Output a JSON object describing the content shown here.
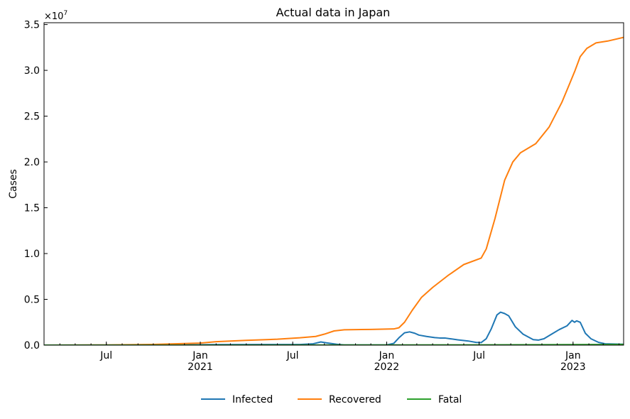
{
  "chart_data": {
    "type": "line",
    "title": "Actual data in Japan",
    "xlabel": "",
    "ylabel": "Cases",
    "y_multiplier_label": "×10",
    "y_multiplier_exponent": "7",
    "xlim": [
      "2020-03-01",
      "2023-04-10"
    ],
    "ylim": [
      0,
      35200000
    ],
    "grid": false,
    "legend_position": "bottom-center",
    "y_ticks": [
      {
        "value": 0,
        "label": "0.0"
      },
      {
        "value": 5000000,
        "label": "0.5"
      },
      {
        "value": 10000000,
        "label": "1.0"
      },
      {
        "value": 15000000,
        "label": "1.5"
      },
      {
        "value": 20000000,
        "label": "2.0"
      },
      {
        "value": 25000000,
        "label": "2.5"
      },
      {
        "value": 30000000,
        "label": "3.0"
      },
      {
        "value": 35000000,
        "label": "3.5"
      }
    ],
    "x_ticks": [
      {
        "date": "2020-07-01",
        "label": "Jul",
        "sublabel": ""
      },
      {
        "date": "2021-01-01",
        "label": "Jan",
        "sublabel": "2021"
      },
      {
        "date": "2021-07-01",
        "label": "Jul",
        "sublabel": ""
      },
      {
        "date": "2022-01-01",
        "label": "Jan",
        "sublabel": "2022"
      },
      {
        "date": "2022-07-01",
        "label": "Jul",
        "sublabel": ""
      },
      {
        "date": "2023-01-01",
        "label": "Jan",
        "sublabel": "2023"
      }
    ],
    "series": [
      {
        "name": "Infected",
        "color": "#1f77b4",
        "points": [
          [
            "2020-03-01",
            0
          ],
          [
            "2020-12-01",
            30000
          ],
          [
            "2021-02-01",
            60000
          ],
          [
            "2021-05-01",
            70000
          ],
          [
            "2021-07-15",
            70000
          ],
          [
            "2021-08-10",
            150000
          ],
          [
            "2021-08-25",
            350000
          ],
          [
            "2021-09-05",
            250000
          ],
          [
            "2021-09-25",
            100000
          ],
          [
            "2021-10-10",
            20000
          ],
          [
            "2022-01-01",
            20000
          ],
          [
            "2022-01-15",
            200000
          ],
          [
            "2022-01-25",
            800000
          ],
          [
            "2022-02-05",
            1350000
          ],
          [
            "2022-02-15",
            1450000
          ],
          [
            "2022-02-25",
            1300000
          ],
          [
            "2022-03-05",
            1100000
          ],
          [
            "2022-03-20",
            950000
          ],
          [
            "2022-04-05",
            820000
          ],
          [
            "2022-04-15",
            780000
          ],
          [
            "2022-04-25",
            780000
          ],
          [
            "2022-05-05",
            700000
          ],
          [
            "2022-05-20",
            580000
          ],
          [
            "2022-06-10",
            450000
          ],
          [
            "2022-06-25",
            300000
          ],
          [
            "2022-07-05",
            280000
          ],
          [
            "2022-07-15",
            700000
          ],
          [
            "2022-07-25",
            1800000
          ],
          [
            "2022-08-05",
            3300000
          ],
          [
            "2022-08-12",
            3600000
          ],
          [
            "2022-08-20",
            3450000
          ],
          [
            "2022-08-28",
            3200000
          ],
          [
            "2022-09-10",
            2000000
          ],
          [
            "2022-09-25",
            1200000
          ],
          [
            "2022-10-05",
            900000
          ],
          [
            "2022-10-15",
            600000
          ],
          [
            "2022-10-25",
            550000
          ],
          [
            "2022-11-05",
            700000
          ],
          [
            "2022-11-20",
            1200000
          ],
          [
            "2022-12-05",
            1700000
          ],
          [
            "2022-12-20",
            2100000
          ],
          [
            "2022-12-30",
            2700000
          ],
          [
            "2023-01-04",
            2500000
          ],
          [
            "2023-01-08",
            2650000
          ],
          [
            "2023-01-15",
            2500000
          ],
          [
            "2023-01-25",
            1300000
          ],
          [
            "2023-02-05",
            700000
          ],
          [
            "2023-02-20",
            300000
          ],
          [
            "2023-03-05",
            150000
          ],
          [
            "2023-04-10",
            100000
          ]
        ]
      },
      {
        "name": "Recovered",
        "color": "#ff7f0e",
        "points": [
          [
            "2020-03-01",
            0
          ],
          [
            "2020-07-01",
            20000
          ],
          [
            "2020-10-01",
            80000
          ],
          [
            "2021-01-01",
            220000
          ],
          [
            "2021-02-01",
            380000
          ],
          [
            "2021-04-01",
            520000
          ],
          [
            "2021-06-01",
            650000
          ],
          [
            "2021-07-15",
            800000
          ],
          [
            "2021-08-15",
            950000
          ],
          [
            "2021-09-01",
            1200000
          ],
          [
            "2021-09-20",
            1550000
          ],
          [
            "2021-10-10",
            1680000
          ],
          [
            "2021-12-01",
            1720000
          ],
          [
            "2022-01-15",
            1770000
          ],
          [
            "2022-01-25",
            1900000
          ],
          [
            "2022-02-05",
            2500000
          ],
          [
            "2022-02-20",
            3800000
          ],
          [
            "2022-03-10",
            5200000
          ],
          [
            "2022-04-01",
            6300000
          ],
          [
            "2022-05-01",
            7600000
          ],
          [
            "2022-06-01",
            8800000
          ],
          [
            "2022-07-05",
            9500000
          ],
          [
            "2022-07-15",
            10500000
          ],
          [
            "2022-08-01",
            13800000
          ],
          [
            "2022-08-20",
            18000000
          ],
          [
            "2022-09-05",
            20000000
          ],
          [
            "2022-09-20",
            21000000
          ],
          [
            "2022-10-20",
            22000000
          ],
          [
            "2022-11-15",
            23800000
          ],
          [
            "2022-12-10",
            26500000
          ],
          [
            "2022-12-25",
            28500000
          ],
          [
            "2023-01-05",
            30000000
          ],
          [
            "2023-01-15",
            31500000
          ],
          [
            "2023-01-28",
            32400000
          ],
          [
            "2023-02-15",
            33000000
          ],
          [
            "2023-03-10",
            33200000
          ],
          [
            "2023-04-10",
            33600000
          ]
        ]
      },
      {
        "name": "Fatal",
        "color": "#2ca02c",
        "points": [
          [
            "2020-03-01",
            0
          ],
          [
            "2021-01-01",
            4000
          ],
          [
            "2022-01-01",
            18000
          ],
          [
            "2022-07-01",
            31000
          ],
          [
            "2023-01-01",
            58000
          ],
          [
            "2023-04-10",
            74000
          ]
        ]
      }
    ]
  }
}
